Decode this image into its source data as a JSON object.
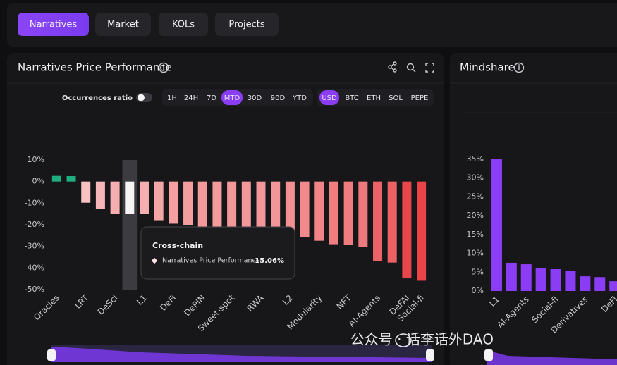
{
  "tabs": [
    {
      "label": "Narratives",
      "active": true
    },
    {
      "label": "Market",
      "active": false
    },
    {
      "label": "KOLs",
      "active": false
    },
    {
      "label": "Projects",
      "active": false
    }
  ],
  "controls": {
    "toggle_label": "Occurrences ratio",
    "toggle_on": false,
    "periods": [
      "1H",
      "24H",
      "7D",
      "MTD",
      "30D",
      "90D",
      "YTD"
    ],
    "active_period": 3,
    "currencies": [
      "USD",
      "BTC",
      "ETH",
      "SOL",
      "PEPE"
    ],
    "active_currency": 0
  },
  "watermark": "公众号 · 话李话外DAO",
  "chart_data": [
    {
      "type": "bar",
      "title": "Narratives Price Performance",
      "categories": [
        "Oracles",
        null,
        "LRT",
        null,
        "DeSci",
        null,
        "L1",
        null,
        "DeFi",
        null,
        "DePIN",
        null,
        "Sweet-spot",
        null,
        "RWA",
        null,
        "L2",
        null,
        "Modularity",
        null,
        "NFT",
        null,
        "AI-Agents",
        null,
        "DeFAI",
        "Social-fi"
      ],
      "values": [
        2.6,
        2.5,
        -9.8,
        -12.7,
        -15,
        -15.06,
        -15,
        -17.9,
        -19.5,
        -20.2,
        -21.2,
        -21,
        -21.5,
        -21.5,
        -22,
        -22,
        -23.8,
        -25.7,
        -27.4,
        -29,
        -29.3,
        -30.3,
        -36.8,
        -37.5,
        -44.8,
        -45.9
      ],
      "ylim": [
        -50,
        10
      ],
      "yticks": [
        {
          "value": 10,
          "label": "10%"
        },
        {
          "value": 0,
          "label": "0%"
        },
        {
          "value": -10,
          "label": "-10%"
        },
        {
          "value": -20,
          "label": "-20%"
        },
        {
          "value": -30,
          "label": "-30%"
        },
        {
          "value": -40,
          "label": "-40%"
        },
        {
          "value": -50,
          "label": "-50%"
        }
      ],
      "grid": false,
      "positive_color": "#1fae80",
      "negative_colors": [
        "#fde3e3",
        "#e5353a"
      ],
      "active_index": 5,
      "active_color": "#f6f3f4",
      "tooltip": {
        "title": "Cross-chain",
        "series": "Narratives Price Performance",
        "value_label": "-15.06%"
      }
    },
    {
      "type": "bar",
      "title": "Mindshare",
      "categories": [
        "L1",
        null,
        "AI-Agents",
        null,
        "Social-fi",
        null,
        "Derivatives",
        null,
        "DeFi"
      ],
      "values": [
        35,
        7.5,
        7.1,
        6,
        5.8,
        5.4,
        3.9,
        3.7,
        2.6
      ],
      "ylim": [
        0,
        35
      ],
      "yticks": [
        {
          "value": 35,
          "label": "35%"
        },
        {
          "value": 30,
          "label": "30%"
        },
        {
          "value": 25,
          "label": "25%"
        },
        {
          "value": 20,
          "label": "20%"
        },
        {
          "value": 15,
          "label": "15%"
        },
        {
          "value": 10,
          "label": "10%"
        },
        {
          "value": 5,
          "label": "5%"
        },
        {
          "value": 0,
          "label": "0%"
        }
      ],
      "grid": false,
      "color": "#8b3cf5"
    }
  ]
}
